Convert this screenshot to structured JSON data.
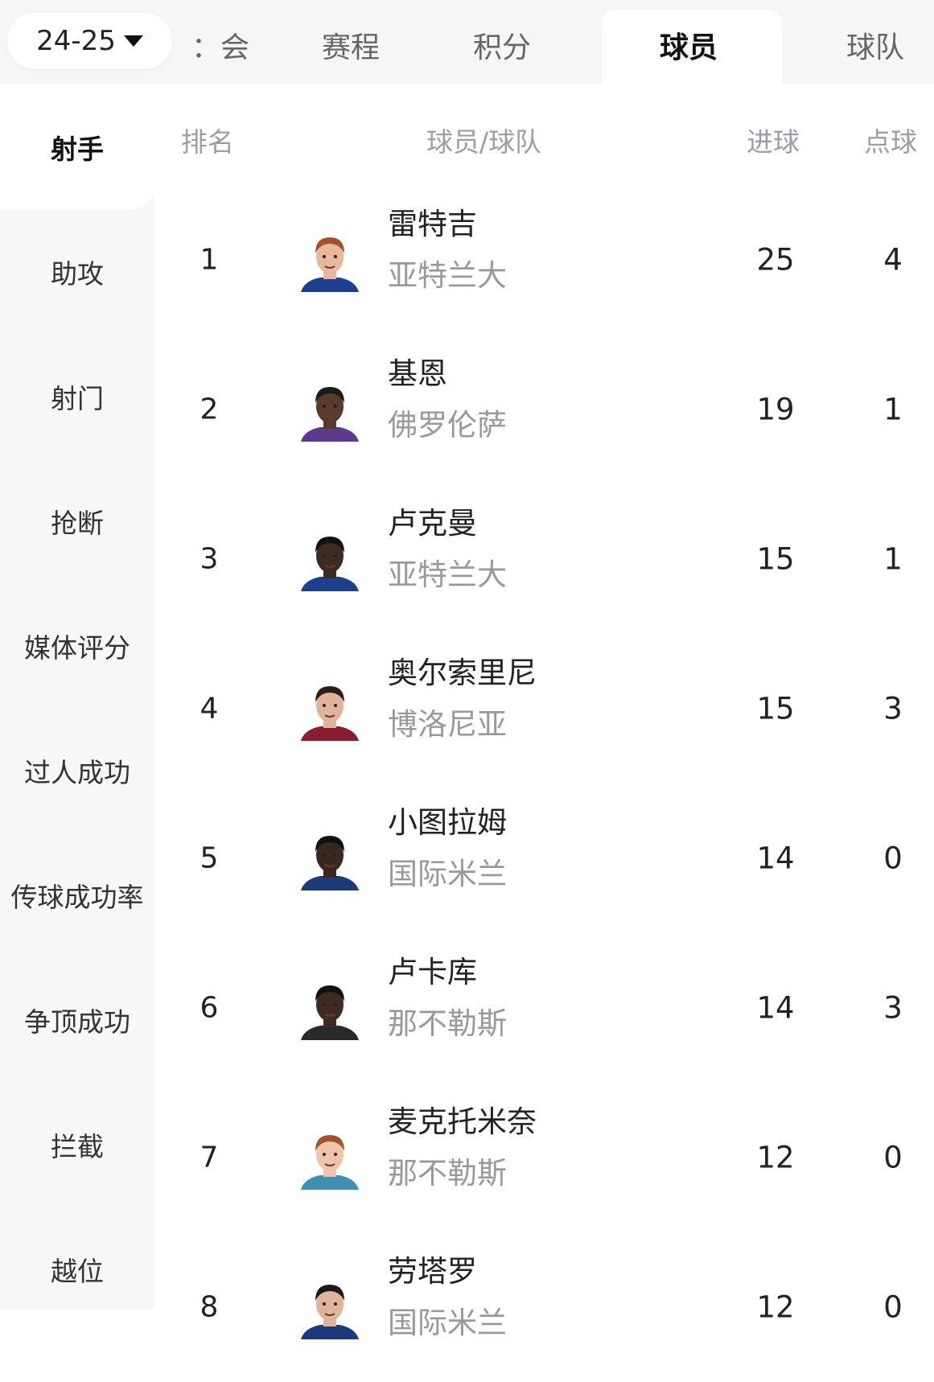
{
  "season_selector": {
    "value": "24-25",
    "icon": "caret-down-icon"
  },
  "tabs": [
    {
      "label": "：会",
      "active": false
    },
    {
      "label": "赛程",
      "active": false
    },
    {
      "label": "积分",
      "active": false
    },
    {
      "label": "球员",
      "active": true
    },
    {
      "label": "球队",
      "active": false
    }
  ],
  "sidebar": {
    "items": [
      {
        "label": "射手",
        "active": true
      },
      {
        "label": "助攻"
      },
      {
        "label": "射门"
      },
      {
        "label": "抢断"
      },
      {
        "label": "媒体评分"
      },
      {
        "label": "过人成功"
      },
      {
        "label": "传球成功率"
      },
      {
        "label": "争顶成功"
      },
      {
        "label": "拦截"
      },
      {
        "label": "越位"
      }
    ]
  },
  "table": {
    "headers": {
      "rank": "排名",
      "player_team": "球员/球队",
      "goals": "进球",
      "penalties": "点球"
    },
    "rows": [
      {
        "rank": "1",
        "name": "雷特吉",
        "team": "亚特兰大",
        "goals": "25",
        "penalties": "4",
        "skin": "#e8b89a",
        "hair": "#a0522d",
        "kit": "#1d3f8f"
      },
      {
        "rank": "2",
        "name": "基恩",
        "team": "佛罗伦萨",
        "goals": "19",
        "penalties": "1",
        "skin": "#5a3a2a",
        "hair": "#1a1a1a",
        "kit": "#5b3a8e"
      },
      {
        "rank": "3",
        "name": "卢克曼",
        "team": "亚特兰大",
        "goals": "15",
        "penalties": "1",
        "skin": "#3d2a20",
        "hair": "#111111",
        "kit": "#1d3f8f"
      },
      {
        "rank": "4",
        "name": "奥尔索里尼",
        "team": "博洛尼亚",
        "goals": "15",
        "penalties": "3",
        "skin": "#e0b49a",
        "hair": "#2a1e18",
        "kit": "#8b1e2e"
      },
      {
        "rank": "5",
        "name": "小图拉姆",
        "team": "国际米兰",
        "goals": "14",
        "penalties": "0",
        "skin": "#3a2820",
        "hair": "#111111",
        "kit": "#1a3a7a"
      },
      {
        "rank": "6",
        "name": "卢卡库",
        "team": "那不勒斯",
        "goals": "14",
        "penalties": "3",
        "skin": "#3e2a22",
        "hair": "#111111",
        "kit": "#2a2a2a"
      },
      {
        "rank": "7",
        "name": "麦克托米奈",
        "team": "那不勒斯",
        "goals": "12",
        "penalties": "0",
        "skin": "#f0c4a8",
        "hair": "#a0522d",
        "kit": "#3f8fb0"
      },
      {
        "rank": "8",
        "name": "劳塔罗",
        "team": "国际米兰",
        "goals": "12",
        "penalties": "0",
        "skin": "#e0b49a",
        "hair": "#1a1a1a",
        "kit": "#1a3a7a"
      }
    ]
  }
}
